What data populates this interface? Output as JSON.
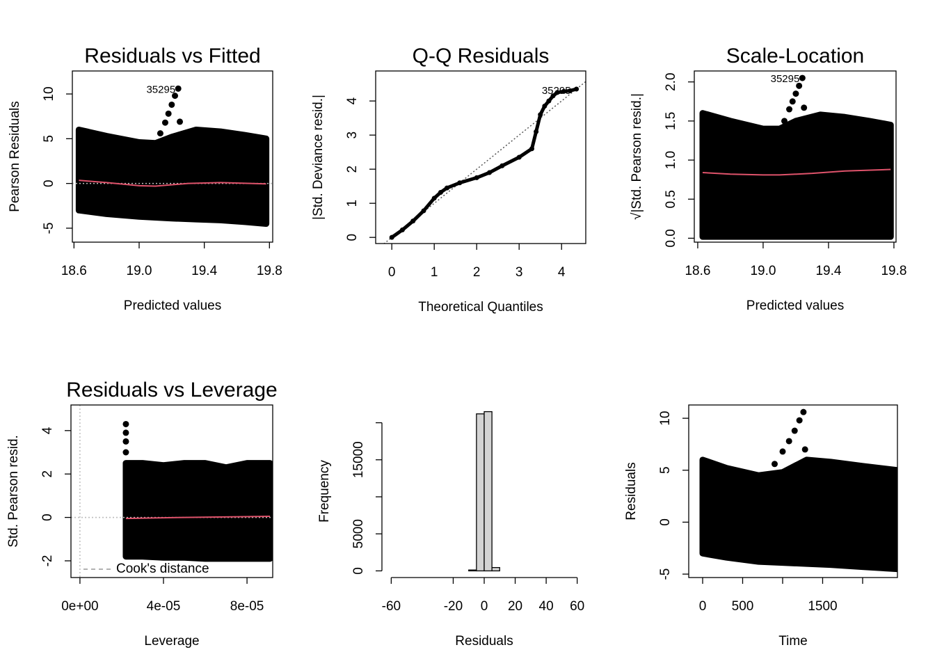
{
  "chart_data": [
    {
      "type": "scatter",
      "title": "Residuals vs Fitted",
      "xlabel": "Predicted values",
      "ylabel": "Pearson Residuals",
      "xlim": [
        18.59,
        19.82
      ],
      "ylim": [
        -6.56,
        12.57
      ],
      "xticks": [
        18.6,
        {
          "value": 19.0,
          "label": "19.0"
        },
        19.4,
        19.8
      ],
      "yticks": [
        -5,
        0,
        5,
        10
      ],
      "cloud_x": [
        18.63,
        18.8,
        19.0,
        19.1,
        19.2,
        19.35,
        19.5,
        19.65,
        19.78
      ],
      "cloud_upper": [
        6.0,
        5.3,
        4.6,
        4.5,
        5.2,
        6.0,
        5.8,
        5.4,
        5.0
      ],
      "cloud_lower": [
        -3.0,
        -3.4,
        -3.7,
        -3.8,
        -3.9,
        -4.0,
        -4.1,
        -4.3,
        -4.5
      ],
      "trail_x": [
        19.1,
        19.13,
        19.16,
        19.18,
        19.2,
        19.22,
        19.24,
        19.25
      ],
      "trail_y": [
        4.5,
        5.6,
        6.8,
        7.8,
        8.8,
        9.8,
        10.6,
        6.9
      ],
      "smooth_x": [
        18.63,
        18.8,
        19.0,
        19.1,
        19.3,
        19.5,
        19.78
      ],
      "smooth_y": [
        0.35,
        0.1,
        -0.25,
        -0.3,
        0.0,
        0.1,
        -0.05
      ],
      "hline": 0,
      "point_labels": [
        "35295"
      ],
      "point_color": "#000000",
      "smooth_color": "#DF536B",
      "box": true
    },
    {
      "type": "qq",
      "title": "Q-Q Residuals",
      "xlabel": "Theoretical Quantiles",
      "ylabel": "|Std. Deviance resid.|",
      "xlim": [
        -0.38,
        4.57
      ],
      "ylim": [
        -0.18,
        4.88
      ],
      "xticks": [
        0,
        1,
        2,
        3,
        4
      ],
      "yticks": [
        0,
        1,
        2,
        3,
        4
      ],
      "x": [
        0,
        0.25,
        0.5,
        0.75,
        1.0,
        1.15,
        1.3,
        1.6,
        2.0,
        2.3,
        2.6,
        3.0,
        3.3,
        3.4,
        3.5,
        3.6,
        3.7,
        3.8,
        3.9,
        4.05,
        4.2,
        4.35
      ],
      "y": [
        0,
        0.22,
        0.48,
        0.78,
        1.15,
        1.32,
        1.45,
        1.6,
        1.75,
        1.9,
        2.1,
        2.35,
        2.6,
        3.1,
        3.6,
        3.85,
        4.0,
        4.15,
        4.25,
        4.28,
        4.3,
        4.35
      ],
      "reference": {
        "intercept": 0,
        "slope": 1
      },
      "point_labels": [
        "35295"
      ],
      "point_color": "#000000",
      "box": true
    },
    {
      "type": "scatter",
      "title": "Scale-Location",
      "xlabel": "Predicted values",
      "ylabel": "√|Std. Pearson resid.|",
      "xlim": [
        18.579,
        19.813
      ],
      "ylim": [
        -0.05,
        2.14
      ],
      "xticks": [
        18.6,
        {
          "value": 19.0,
          "label": "19.0"
        },
        19.4,
        19.8
      ],
      "yticks": [
        {
          "value": 0,
          "label": "0.0"
        },
        0.5,
        {
          "value": 1,
          "label": "1.0"
        },
        1.5,
        {
          "value": 2,
          "label": "2.0"
        }
      ],
      "cloud_x": [
        18.63,
        18.8,
        19.0,
        19.1,
        19.2,
        19.35,
        19.5,
        19.65,
        19.78
      ],
      "cloud_upper": [
        1.6,
        1.5,
        1.4,
        1.4,
        1.5,
        1.58,
        1.55,
        1.5,
        1.45
      ],
      "cloud_lower": [
        0.02,
        0.02,
        0.02,
        0.02,
        0.02,
        0.02,
        0.02,
        0.02,
        0.02
      ],
      "trail_x": [
        19.1,
        19.13,
        19.16,
        19.18,
        19.2,
        19.22,
        19.24,
        19.25
      ],
      "trail_y": [
        1.35,
        1.5,
        1.65,
        1.75,
        1.85,
        1.95,
        2.05,
        1.67
      ],
      "smooth_x": [
        18.63,
        18.8,
        19.0,
        19.1,
        19.3,
        19.5,
        19.78
      ],
      "smooth_y": [
        0.84,
        0.82,
        0.81,
        0.81,
        0.83,
        0.86,
        0.88
      ],
      "point_labels": [
        "35295"
      ],
      "point_color": "#000000",
      "smooth_color": "#DF536B",
      "box": true
    },
    {
      "type": "scatter",
      "title": "Residuals vs Leverage",
      "xlabel": "Leverage",
      "ylabel": "Std. Pearson resid.",
      "xlim": [
        -4.3e-06,
        9.23e-05
      ],
      "ylim": [
        -2.77,
        5.18
      ],
      "xticks": [
        {
          "value": 0,
          "label": "0e+00"
        },
        {
          "value": 4e-05,
          "label": "4e-05"
        },
        {
          "value": 8e-05,
          "label": "8e-05"
        }
      ],
      "yticks": [
        -2,
        0,
        2,
        4
      ],
      "cloud_x": [
        2.2e-05,
        3e-05,
        4e-05,
        5e-05,
        6e-05,
        7e-05,
        8e-05,
        9.1e-05
      ],
      "cloud_upper": [
        2.5,
        2.5,
        2.4,
        2.5,
        2.5,
        2.3,
        2.5,
        2.5
      ],
      "cloud_lower": [
        -1.8,
        -1.8,
        -1.85,
        -1.85,
        -1.9,
        -1.9,
        -1.9,
        -1.9
      ],
      "trail_x": [
        2.2e-05,
        2.2e-05,
        2.2e-05,
        2.2e-05
      ],
      "trail_y": [
        4.3,
        3.9,
        3.5,
        3.0
      ],
      "smooth_x": [
        2.2e-05,
        5e-05,
        9.1e-05
      ],
      "smooth_y": [
        -0.05,
        0.0,
        0.05
      ],
      "hline": 0,
      "vline": 0,
      "legend": {
        "text": "Cook's distance",
        "position": "bottomleft"
      },
      "point_color": "#000000",
      "smooth_color": "#DF536B",
      "box": true
    },
    {
      "type": "histogram",
      "xlabel": "Residuals",
      "ylabel": "Frequency",
      "xlim": [
        -66,
        66
      ],
      "ylim": [
        -900,
        22400
      ],
      "xticks": [
        -60,
        -20,
        0,
        20,
        40,
        60
      ],
      "yticks": [
        0,
        5000,
        {
          "value": 10000,
          "label": null
        },
        15000,
        {
          "value": 20000,
          "label": null
        }
      ],
      "bins": [
        -60,
        -55,
        -50,
        -45,
        -40,
        -35,
        -30,
        -25,
        -20,
        -15,
        -10,
        -5,
        0,
        5,
        10,
        15,
        20,
        25,
        30,
        35,
        40,
        45,
        50,
        55,
        60
      ],
      "counts": [
        0,
        0,
        0,
        0,
        0,
        0,
        0,
        0,
        0,
        0,
        120,
        21200,
        21500,
        450,
        0,
        0,
        0,
        0,
        0,
        0,
        0,
        0,
        0,
        0
      ],
      "color": "#D3D3D3",
      "box": false
    },
    {
      "type": "scatter",
      "xlabel": "Time",
      "ylabel": "Residuals",
      "xlim": [
        -174,
        2435
      ],
      "ylim": [
        -5.33,
        11.28
      ],
      "xticks": [
        0,
        500,
        {
          "value": 1000,
          "label": null
        },
        1500,
        {
          "value": 2000,
          "label": null
        }
      ],
      "yticks": [
        -5,
        0,
        5,
        10
      ],
      "cloud_x": [
        0,
        300,
        700,
        1000,
        1300,
        1600,
        2000,
        2430
      ],
      "cloud_upper": [
        6.0,
        5.2,
        4.5,
        4.8,
        6.0,
        5.8,
        5.4,
        5.0
      ],
      "cloud_lower": [
        -3.0,
        -3.4,
        -3.8,
        -3.9,
        -4.0,
        -4.1,
        -4.3,
        -4.5
      ],
      "trail_x": [
        800,
        900,
        1000,
        1080,
        1150,
        1210,
        1260,
        1280
      ],
      "trail_y": [
        4.5,
        5.6,
        6.8,
        7.8,
        8.8,
        9.8,
        10.6,
        7.0
      ],
      "point_color": "#000000",
      "box": true
    }
  ]
}
